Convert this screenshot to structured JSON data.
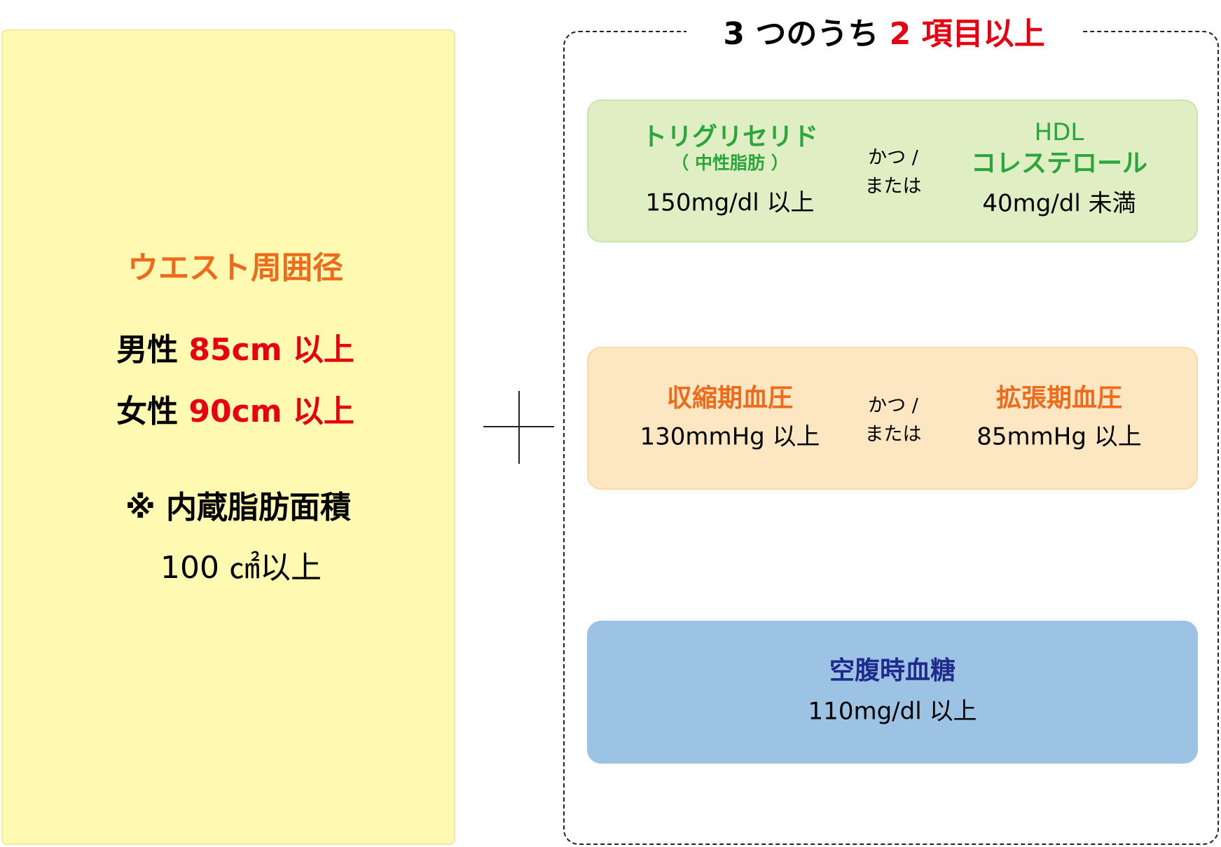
{
  "colors": {
    "black": "#111111",
    "red": "#e60012",
    "orange": "#ee6a1c",
    "green": "#2aa63c",
    "navy": "#1e2a8c"
  },
  "title": {
    "part1": "3 つのうち ",
    "part2": "2 項目以上"
  },
  "waist": {
    "heading": "ウエスト周囲径",
    "male_label": "男性 ",
    "male_value": "85cm 以上",
    "female_label": "女性 ",
    "female_value": "90cm 以上",
    "visceral_label": "※ 内蔵脂肪面積",
    "visceral_value": "100 ㎠以上"
  },
  "plus_icon": "plus-sign",
  "lipid": {
    "left_title": "トリグリセリド",
    "left_sub": "（ 中性脂肪 ）",
    "left_value": "150mg/dl 以上",
    "conj1": "かつ /",
    "conj2": "または",
    "right_title1": "HDL",
    "right_title2": "コレステロール",
    "right_value": "40mg/dl 未満"
  },
  "bp": {
    "left_title": "収縮期血圧",
    "left_value": "130mmHg 以上",
    "conj1": "かつ /",
    "conj2": "または",
    "right_title": "拡張期血圧",
    "right_value": "85mmHg 以上"
  },
  "glucose": {
    "title": "空腹時血糖",
    "value": "110mg/dl 以上"
  }
}
